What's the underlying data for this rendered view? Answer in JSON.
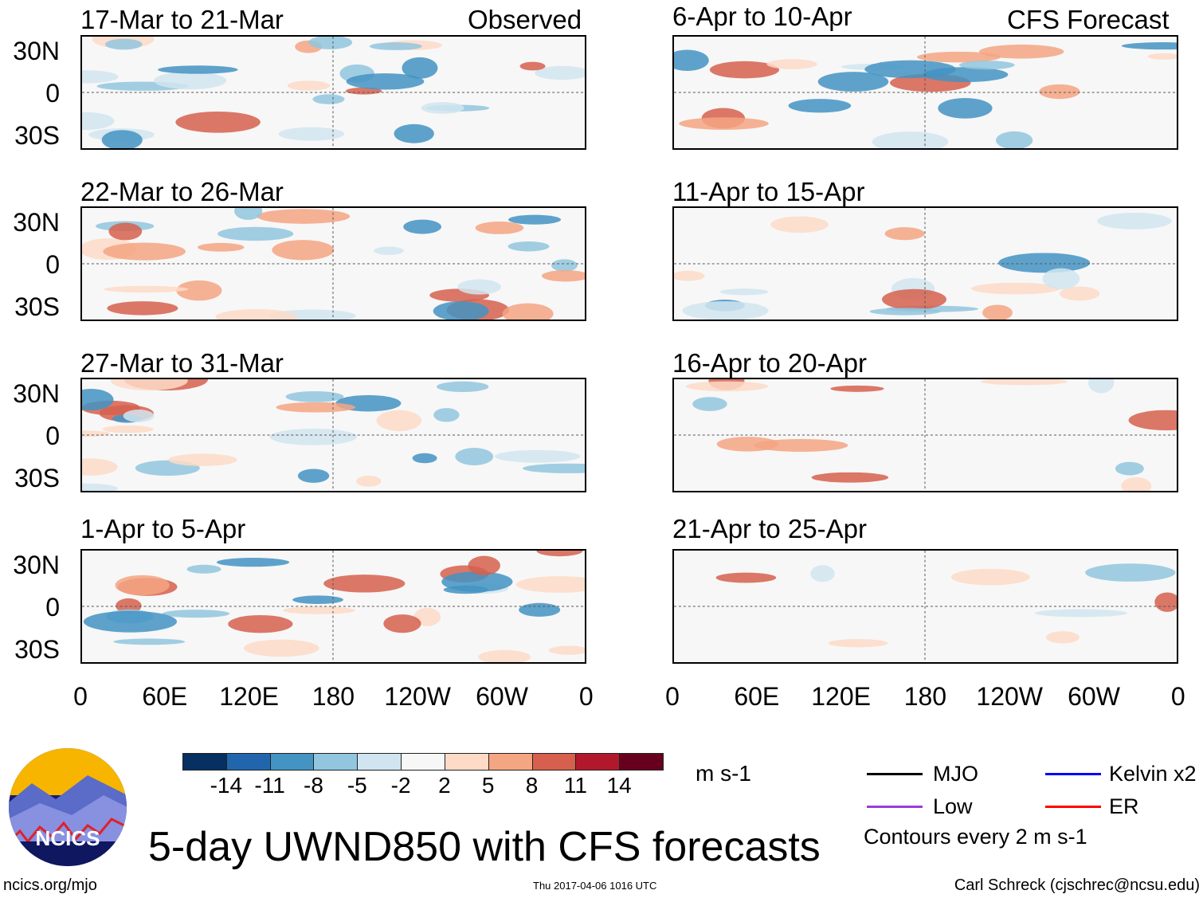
{
  "headers": {
    "left": "Observed",
    "right": "CFS Forecast"
  },
  "panels": {
    "left": [
      "17-Mar to 21-Mar",
      "22-Mar to 26-Mar",
      "27-Mar to 31-Mar",
      "1-Apr to 5-Apr"
    ],
    "right": [
      "6-Apr to 10-Apr",
      "11-Apr to 15-Apr",
      "16-Apr to 20-Apr",
      "21-Apr to 25-Apr"
    ]
  },
  "lat_labels": [
    "30N",
    "0",
    "30S"
  ],
  "lon_labels": [
    "0",
    "60E",
    "120E",
    "180",
    "120W",
    "60W",
    "0"
  ],
  "colorbar": {
    "colors": [
      "#053061",
      "#2166ac",
      "#4393c3",
      "#92c5de",
      "#d1e5f0",
      "#f7f7f7",
      "#fddbc7",
      "#f4a582",
      "#d6604d",
      "#b2182b",
      "#67001f"
    ],
    "labels": [
      "-14",
      "-11",
      "-8",
      "-5",
      "-2",
      "2",
      "5",
      "8",
      "11",
      "14"
    ],
    "units": "m s-1"
  },
  "legend": {
    "items": [
      {
        "label": "MJO",
        "color": "#000000"
      },
      {
        "label": "Kelvin x2",
        "color": "#0000ff"
      },
      {
        "label": "Low",
        "color": "#9a3ddb"
      },
      {
        "label": "ER",
        "color": "#ff0000"
      }
    ],
    "note": "Contours every 2 m s-1"
  },
  "title": "5-day UWND850 with CFS forecasts",
  "logo_text": "NCICS",
  "footer": {
    "left": "ncics.org/mjo",
    "center": "Thu 2017-04-06 1016 UTC",
    "right": "Carl Schreck (cjschrec@ncsu.edu)"
  }
}
